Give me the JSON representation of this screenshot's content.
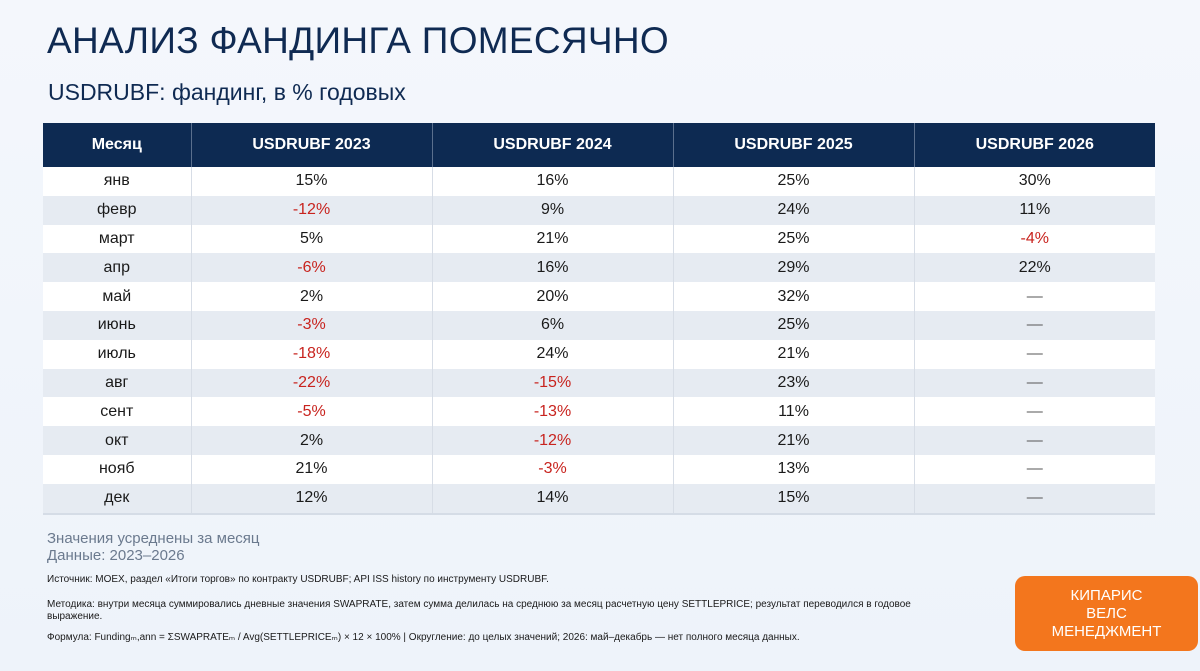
{
  "title": "АНАЛИЗ ФАНДИНГА ПОМЕСЯЧНО",
  "subtitle": "USDRUBF: фандинг, в % годовых",
  "table": {
    "headers": [
      "Месяц",
      "USDRUBF 2023",
      "USDRUBF 2024",
      "USDRUBF 2025",
      "USDRUBF 2026"
    ],
    "rows": [
      [
        "янв",
        "15%",
        "16%",
        "25%",
        "30%"
      ],
      [
        "февр",
        "-12%",
        "9%",
        "24%",
        "11%"
      ],
      [
        "март",
        "5%",
        "21%",
        "25%",
        "-4%"
      ],
      [
        "апр",
        "-6%",
        "16%",
        "29%",
        "22%"
      ],
      [
        "май",
        "2%",
        "20%",
        "32%",
        "—"
      ],
      [
        "июнь",
        "-3%",
        "6%",
        "25%",
        "—"
      ],
      [
        "июль",
        "-18%",
        "24%",
        "21%",
        "—"
      ],
      [
        "авг",
        "-22%",
        "-15%",
        "23%",
        "—"
      ],
      [
        "сент",
        "-5%",
        "-13%",
        "11%",
        "—"
      ],
      [
        "окт",
        "2%",
        "-12%",
        "21%",
        "—"
      ],
      [
        "нояб",
        "21%",
        "-3%",
        "13%",
        "—"
      ],
      [
        "дек",
        "12%",
        "14%",
        "15%",
        "—"
      ]
    ]
  },
  "notes": {
    "line1": "Значения усреднены за месяц",
    "line2": "Данные: 2023–2026",
    "source": "Источник: MOEX, раздел «Итоги торгов» по контракту USDRUBF; API ISS history по инструменту USDRUBF.",
    "method": "Методика: внутри месяца суммировались дневные значения SWAPRATE, затем сумма делилась на среднюю за месяц расчетную цену SETTLEPRICE; результат переводился в годовое выражение.",
    "formula": "Формула: Fundingₘ,ann = ΣSWAPRATEₘ / Avg(SETTLEPRICEₘ) × 12 × 100%   |   Округление: до целых значений; 2026: май–декабрь — нет полного месяца данных."
  },
  "logo": {
    "line1": "КИПАРИС",
    "line2": "ВЕЛС",
    "line3": "МЕНЕДЖМЕНТ"
  },
  "colors": {
    "header_bg": "#0d2a52",
    "negative": "#c8231e",
    "logo_bg": "#f3761d"
  }
}
